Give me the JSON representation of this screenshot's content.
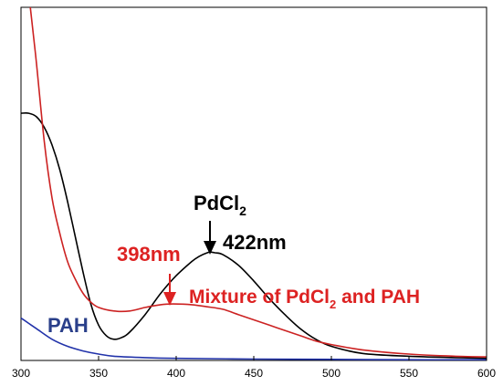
{
  "chart_data": {
    "type": "line",
    "title": "",
    "xlabel": "",
    "ylabel": "",
    "xlim": [
      300,
      600
    ],
    "ylim": [
      0,
      1.0
    ],
    "x_ticks": [
      "300",
      "350",
      "400",
      "450",
      "500",
      "550",
      "600"
    ],
    "series": [
      {
        "name": "PdCl2",
        "color": "#000000",
        "points": [
          [
            300,
            0.7
          ],
          [
            305,
            0.7
          ],
          [
            310,
            0.69
          ],
          [
            315,
            0.66
          ],
          [
            320,
            0.61
          ],
          [
            325,
            0.54
          ],
          [
            330,
            0.45
          ],
          [
            335,
            0.35
          ],
          [
            340,
            0.25
          ],
          [
            345,
            0.16
          ],
          [
            350,
            0.1
          ],
          [
            355,
            0.07
          ],
          [
            360,
            0.06
          ],
          [
            365,
            0.065
          ],
          [
            370,
            0.08
          ],
          [
            380,
            0.13
          ],
          [
            390,
            0.19
          ],
          [
            400,
            0.24
          ],
          [
            410,
            0.28
          ],
          [
            415,
            0.295
          ],
          [
            420,
            0.305
          ],
          [
            422,
            0.307
          ],
          [
            425,
            0.305
          ],
          [
            430,
            0.3
          ],
          [
            440,
            0.27
          ],
          [
            450,
            0.225
          ],
          [
            460,
            0.175
          ],
          [
            470,
            0.13
          ],
          [
            480,
            0.09
          ],
          [
            490,
            0.06
          ],
          [
            500,
            0.04
          ],
          [
            520,
            0.02
          ],
          [
            550,
            0.012
          ],
          [
            580,
            0.008
          ],
          [
            600,
            0.006
          ]
        ]
      },
      {
        "name": "Mixture of PdCl2 and PAH",
        "color": "#cc2222",
        "points": [
          [
            306,
            1.0
          ],
          [
            310,
            0.84
          ],
          [
            315,
            0.62
          ],
          [
            320,
            0.46
          ],
          [
            325,
            0.36
          ],
          [
            330,
            0.28
          ],
          [
            335,
            0.23
          ],
          [
            340,
            0.19
          ],
          [
            345,
            0.165
          ],
          [
            350,
            0.15
          ],
          [
            360,
            0.14
          ],
          [
            370,
            0.14
          ],
          [
            380,
            0.15
          ],
          [
            390,
            0.158
          ],
          [
            398,
            0.16
          ],
          [
            410,
            0.158
          ],
          [
            420,
            0.152
          ],
          [
            430,
            0.145
          ],
          [
            440,
            0.13
          ],
          [
            450,
            0.115
          ],
          [
            460,
            0.1
          ],
          [
            470,
            0.085
          ],
          [
            480,
            0.07
          ],
          [
            490,
            0.055
          ],
          [
            500,
            0.045
          ],
          [
            520,
            0.03
          ],
          [
            550,
            0.018
          ],
          [
            580,
            0.012
          ],
          [
            600,
            0.01
          ]
        ]
      },
      {
        "name": "PAH",
        "color": "#2233aa",
        "points": [
          [
            300,
            0.12
          ],
          [
            305,
            0.105
          ],
          [
            310,
            0.09
          ],
          [
            320,
            0.06
          ],
          [
            330,
            0.04
          ],
          [
            340,
            0.027
          ],
          [
            350,
            0.018
          ],
          [
            360,
            0.012
          ],
          [
            380,
            0.008
          ],
          [
            400,
            0.006
          ],
          [
            450,
            0.004
          ],
          [
            500,
            0.003
          ],
          [
            550,
            0.002
          ],
          [
            600,
            0.002
          ]
        ]
      }
    ],
    "annotations": {
      "pdcl2_label": "PdCl",
      "pdcl2_sub": "2",
      "peak_422": "422nm",
      "peak_398": "398nm",
      "mixture_label_a": "Mixture of PdCl",
      "mixture_label_sub": "2",
      "mixture_label_b": " and PAH",
      "pah_label": "PAH"
    },
    "colors": {
      "black": "#000000",
      "red": "#dd2222",
      "blue": "#2a3f8a"
    }
  }
}
